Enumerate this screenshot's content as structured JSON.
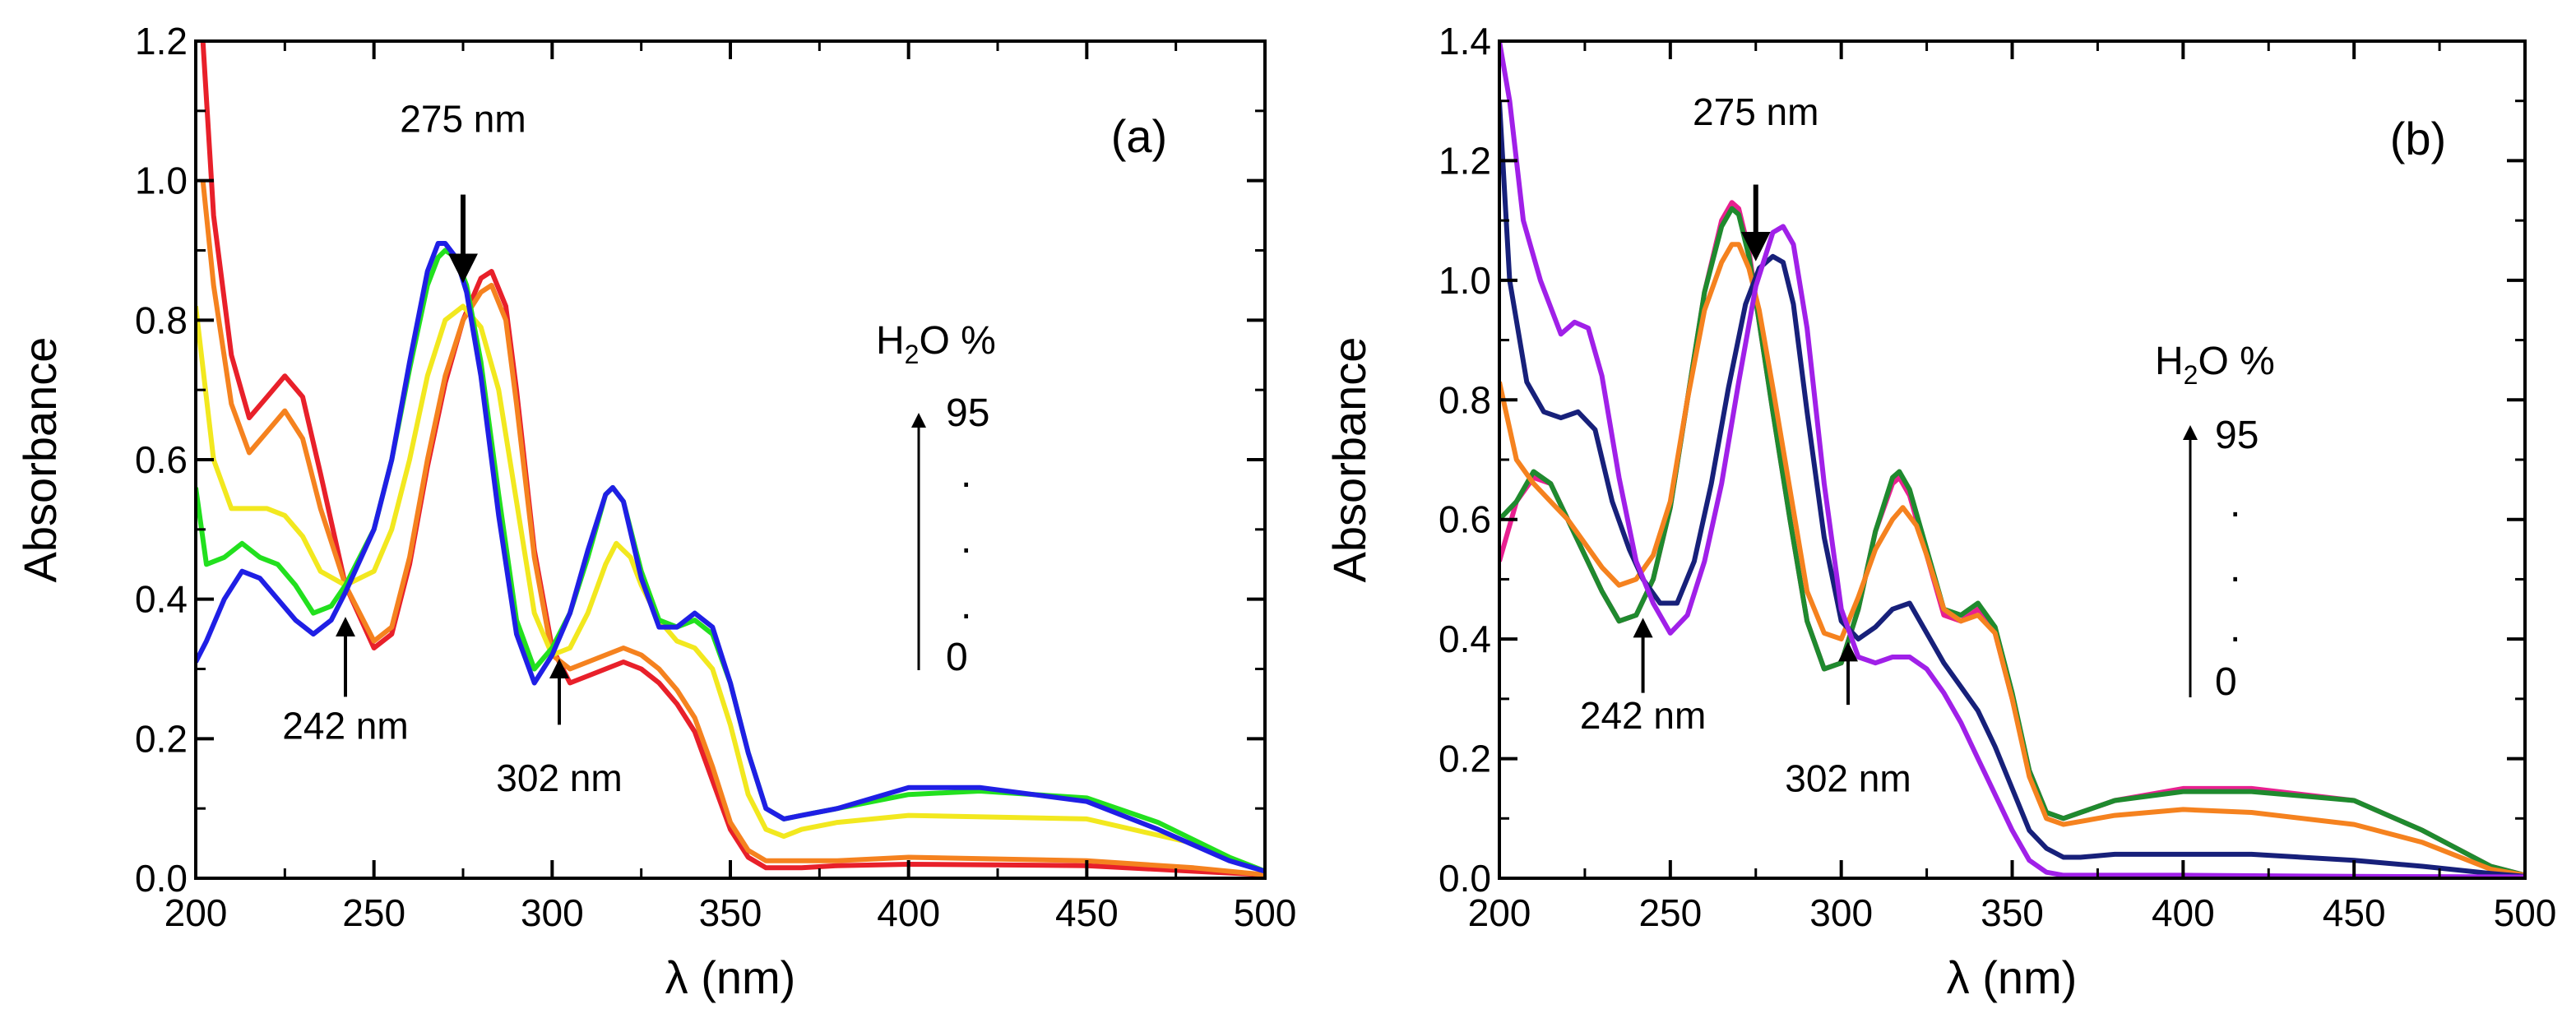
{
  "chart_data": [
    {
      "type": "line",
      "panel_label": "(a)",
      "xlabel": "λ (nm)",
      "ylabel": "Absorbance",
      "xlim": [
        200,
        500
      ],
      "ylim": [
        0,
        1.2
      ],
      "xticks": [
        200,
        250,
        300,
        350,
        400,
        450,
        500
      ],
      "xtick_labels": [
        "200",
        "250",
        "300",
        "350",
        "400",
        "450",
        "500"
      ],
      "yticks": [
        0.0,
        0.2,
        0.4,
        0.6,
        0.8,
        1.0,
        1.2
      ],
      "ytick_labels": [
        "0.0",
        "0.2",
        "0.4",
        "0.6",
        "0.8",
        "1.0",
        "1.2"
      ],
      "grid": false,
      "legend": {
        "title": "H",
        "title_sub": "2",
        "title_tail": "O %",
        "top": "95",
        "dots": ".",
        "bottom": "0"
      },
      "annotations": [
        {
          "text": "275 nm",
          "x": 275,
          "arrow": "down",
          "arrow_y": [
            0.98,
            0.86
          ],
          "text_y": 1.07
        },
        {
          "text": "242 nm",
          "x": 242,
          "arrow": "up",
          "arrow_y": [
            0.26,
            0.37
          ],
          "text_y": 0.2
        },
        {
          "text": "302 nm",
          "x": 302,
          "arrow": "up",
          "arrow_y": [
            0.22,
            0.31
          ],
          "text_y": 0.125
        }
      ],
      "series": [
        {
          "name": "red",
          "color": "#e8202a",
          "x": [
            202,
            205,
            210,
            215,
            220,
            225,
            230,
            235,
            242,
            250,
            255,
            260,
            265,
            270,
            275,
            280,
            283,
            287,
            290,
            295,
            300,
            305,
            310,
            315,
            320,
            325,
            330,
            335,
            340,
            345,
            350,
            355,
            360,
            370,
            380,
            400,
            450,
            480,
            500
          ],
          "y": [
            1.2,
            0.95,
            0.75,
            0.66,
            0.69,
            0.72,
            0.69,
            0.58,
            0.42,
            0.33,
            0.35,
            0.45,
            0.59,
            0.71,
            0.8,
            0.86,
            0.87,
            0.82,
            0.7,
            0.47,
            0.33,
            0.28,
            0.29,
            0.3,
            0.31,
            0.3,
            0.28,
            0.25,
            0.21,
            0.14,
            0.07,
            0.03,
            0.015,
            0.015,
            0.018,
            0.02,
            0.018,
            0.01,
            0.005
          ]
        },
        {
          "name": "orange",
          "color": "#f5821f",
          "x": [
            202,
            205,
            210,
            215,
            220,
            225,
            230,
            235,
            242,
            250,
            255,
            260,
            265,
            270,
            275,
            280,
            283,
            287,
            290,
            295,
            300,
            305,
            310,
            315,
            320,
            325,
            330,
            335,
            340,
            345,
            350,
            355,
            360,
            370,
            380,
            400,
            450,
            480,
            500
          ],
          "y": [
            1.0,
            0.85,
            0.68,
            0.61,
            0.64,
            0.67,
            0.63,
            0.53,
            0.42,
            0.34,
            0.36,
            0.46,
            0.6,
            0.72,
            0.8,
            0.84,
            0.85,
            0.8,
            0.68,
            0.46,
            0.32,
            0.3,
            0.31,
            0.32,
            0.33,
            0.32,
            0.3,
            0.27,
            0.23,
            0.16,
            0.08,
            0.04,
            0.025,
            0.025,
            0.025,
            0.03,
            0.025,
            0.015,
            0.005
          ]
        },
        {
          "name": "yellow",
          "color": "#f2e81f",
          "x": [
            200,
            205,
            210,
            215,
            220,
            225,
            230,
            235,
            242,
            250,
            255,
            260,
            265,
            270,
            275,
            280,
            285,
            290,
            295,
            300,
            305,
            310,
            315,
            318,
            322,
            325,
            330,
            335,
            340,
            345,
            350,
            355,
            360,
            365,
            370,
            380,
            400,
            450,
            480,
            500
          ],
          "y": [
            0.82,
            0.6,
            0.53,
            0.53,
            0.53,
            0.52,
            0.49,
            0.44,
            0.42,
            0.44,
            0.5,
            0.6,
            0.72,
            0.8,
            0.82,
            0.79,
            0.7,
            0.54,
            0.38,
            0.32,
            0.33,
            0.38,
            0.45,
            0.48,
            0.46,
            0.42,
            0.37,
            0.34,
            0.33,
            0.3,
            0.22,
            0.12,
            0.07,
            0.06,
            0.07,
            0.08,
            0.09,
            0.085,
            0.05,
            0.01
          ]
        },
        {
          "name": "green",
          "color": "#22e01e",
          "x": [
            200,
            203,
            208,
            213,
            218,
            223,
            228,
            233,
            238,
            242,
            250,
            255,
            260,
            265,
            268,
            270,
            273,
            276,
            280,
            285,
            290,
            295,
            300,
            305,
            310,
            315,
            317,
            320,
            325,
            330,
            335,
            340,
            345,
            350,
            355,
            360,
            365,
            370,
            380,
            400,
            420,
            450,
            470,
            490,
            500
          ],
          "y": [
            0.56,
            0.45,
            0.46,
            0.48,
            0.46,
            0.45,
            0.42,
            0.38,
            0.39,
            0.42,
            0.5,
            0.6,
            0.73,
            0.85,
            0.89,
            0.9,
            0.89,
            0.85,
            0.74,
            0.55,
            0.37,
            0.3,
            0.33,
            0.38,
            0.46,
            0.55,
            0.56,
            0.54,
            0.44,
            0.37,
            0.36,
            0.37,
            0.35,
            0.28,
            0.18,
            0.1,
            0.085,
            0.09,
            0.1,
            0.12,
            0.125,
            0.115,
            0.08,
            0.03,
            0.01
          ]
        },
        {
          "name": "blue",
          "color": "#1f1fe5",
          "x": [
            200,
            203,
            208,
            213,
            218,
            223,
            228,
            233,
            238,
            242,
            250,
            255,
            260,
            265,
            268,
            270,
            273,
            276,
            280,
            285,
            290,
            295,
            300,
            305,
            310,
            315,
            317,
            320,
            325,
            330,
            335,
            340,
            345,
            350,
            355,
            360,
            365,
            370,
            380,
            400,
            420,
            450,
            470,
            490,
            500
          ],
          "y": [
            0.31,
            0.34,
            0.4,
            0.44,
            0.43,
            0.4,
            0.37,
            0.35,
            0.37,
            0.41,
            0.5,
            0.6,
            0.74,
            0.87,
            0.91,
            0.91,
            0.89,
            0.84,
            0.72,
            0.52,
            0.35,
            0.28,
            0.32,
            0.38,
            0.47,
            0.55,
            0.56,
            0.54,
            0.43,
            0.36,
            0.36,
            0.38,
            0.36,
            0.28,
            0.18,
            0.1,
            0.085,
            0.09,
            0.1,
            0.13,
            0.13,
            0.11,
            0.07,
            0.025,
            0.01
          ]
        }
      ]
    },
    {
      "type": "line",
      "panel_label": "(b)",
      "xlabel": "λ (nm)",
      "ylabel": "Absorbance",
      "xlim": [
        200,
        500
      ],
      "ylim": [
        0,
        1.4
      ],
      "xticks": [
        200,
        250,
        300,
        350,
        400,
        450,
        500
      ],
      "xtick_labels": [
        "200",
        "250",
        "300",
        "350",
        "400",
        "450",
        "500"
      ],
      "yticks": [
        0.0,
        0.2,
        0.4,
        0.6,
        0.8,
        1.0,
        1.2,
        1.4
      ],
      "ytick_labels": [
        "0.0",
        "0.2",
        "0.4",
        "0.6",
        "0.8",
        "1.0",
        "1.2",
        "1.4"
      ],
      "grid": false,
      "legend": {
        "title": "H",
        "title_sub": "2",
        "title_tail": "O %",
        "top": "95",
        "dots": ".",
        "bottom": "0"
      },
      "annotations": [
        {
          "text": "275 nm",
          "x": 275,
          "arrow": "down",
          "arrow_y": [
            1.16,
            1.04
          ],
          "text_y": 1.26
        },
        {
          "text": "242 nm",
          "x": 242,
          "arrow": "up",
          "arrow_y": [
            0.31,
            0.43
          ],
          "text_y": 0.25
        },
        {
          "text": "302 nm",
          "x": 302,
          "arrow": "up",
          "arrow_y": [
            0.29,
            0.39
          ],
          "text_y": 0.145
        }
      ],
      "series": [
        {
          "name": "magenta",
          "color": "#e82090",
          "x": [
            200,
            205,
            210,
            215,
            220,
            225,
            230,
            235,
            240,
            245,
            250,
            255,
            260,
            265,
            268,
            270,
            273,
            276,
            280,
            285,
            290,
            295,
            300,
            305,
            310,
            315,
            317,
            320,
            325,
            330,
            335,
            340,
            345,
            350,
            355,
            360,
            365,
            370,
            380,
            400,
            420,
            450,
            470,
            490,
            500
          ],
          "y": [
            0.53,
            0.63,
            0.67,
            0.66,
            0.6,
            0.54,
            0.48,
            0.43,
            0.44,
            0.5,
            0.62,
            0.8,
            0.98,
            1.1,
            1.13,
            1.12,
            1.05,
            0.93,
            0.78,
            0.6,
            0.43,
            0.35,
            0.36,
            0.45,
            0.58,
            0.66,
            0.67,
            0.64,
            0.54,
            0.44,
            0.43,
            0.45,
            0.41,
            0.3,
            0.18,
            0.11,
            0.1,
            0.11,
            0.13,
            0.15,
            0.15,
            0.13,
            0.08,
            0.02,
            0.005
          ]
        },
        {
          "name": "green",
          "color": "#1f8a2e",
          "x": [
            200,
            205,
            210,
            215,
            220,
            225,
            230,
            235,
            240,
            245,
            250,
            255,
            260,
            265,
            268,
            270,
            273,
            276,
            280,
            285,
            290,
            295,
            300,
            305,
            310,
            315,
            317,
            320,
            325,
            330,
            335,
            340,
            345,
            350,
            355,
            360,
            365,
            370,
            380,
            400,
            420,
            450,
            470,
            490,
            500
          ],
          "y": [
            0.6,
            0.63,
            0.68,
            0.66,
            0.6,
            0.54,
            0.48,
            0.43,
            0.44,
            0.5,
            0.62,
            0.8,
            0.98,
            1.09,
            1.12,
            1.11,
            1.04,
            0.93,
            0.78,
            0.6,
            0.43,
            0.35,
            0.36,
            0.45,
            0.58,
            0.67,
            0.68,
            0.65,
            0.55,
            0.45,
            0.44,
            0.46,
            0.42,
            0.31,
            0.18,
            0.11,
            0.1,
            0.11,
            0.13,
            0.145,
            0.145,
            0.13,
            0.08,
            0.02,
            0.005
          ]
        },
        {
          "name": "orange",
          "color": "#f5821f",
          "x": [
            200,
            205,
            210,
            215,
            220,
            225,
            230,
            235,
            240,
            245,
            250,
            255,
            260,
            265,
            268,
            270,
            273,
            276,
            280,
            285,
            290,
            295,
            300,
            305,
            310,
            315,
            318,
            322,
            325,
            330,
            335,
            340,
            345,
            350,
            355,
            360,
            365,
            370,
            380,
            400,
            420,
            450,
            470,
            490,
            500
          ],
          "y": [
            0.83,
            0.7,
            0.66,
            0.63,
            0.6,
            0.56,
            0.52,
            0.49,
            0.5,
            0.54,
            0.63,
            0.8,
            0.95,
            1.03,
            1.06,
            1.06,
            1.02,
            0.95,
            0.82,
            0.65,
            0.48,
            0.41,
            0.4,
            0.47,
            0.55,
            0.6,
            0.62,
            0.59,
            0.54,
            0.45,
            0.43,
            0.44,
            0.41,
            0.3,
            0.17,
            0.1,
            0.09,
            0.095,
            0.105,
            0.115,
            0.11,
            0.09,
            0.06,
            0.015,
            0.005
          ]
        },
        {
          "name": "navy",
          "color": "#17207a",
          "x": [
            200,
            203,
            208,
            213,
            218,
            223,
            228,
            233,
            238,
            242,
            247,
            252,
            257,
            262,
            267,
            272,
            276,
            280,
            283,
            286,
            290,
            295,
            300,
            305,
            310,
            315,
            320,
            325,
            330,
            335,
            340,
            345,
            350,
            355,
            360,
            365,
            370,
            380,
            400,
            420,
            450,
            470,
            490,
            500
          ],
          "y": [
            1.3,
            1.0,
            0.83,
            0.78,
            0.77,
            0.78,
            0.75,
            0.63,
            0.55,
            0.5,
            0.46,
            0.46,
            0.53,
            0.66,
            0.82,
            0.96,
            1.02,
            1.04,
            1.03,
            0.96,
            0.78,
            0.57,
            0.43,
            0.4,
            0.42,
            0.45,
            0.46,
            0.41,
            0.36,
            0.32,
            0.28,
            0.22,
            0.15,
            0.08,
            0.05,
            0.035,
            0.035,
            0.04,
            0.04,
            0.04,
            0.03,
            0.02,
            0.008,
            0.003
          ]
        },
        {
          "name": "purple",
          "color": "#a020e8",
          "x": [
            200,
            203,
            207,
            212,
            218,
            222,
            226,
            230,
            235,
            240,
            245,
            250,
            255,
            260,
            265,
            270,
            275,
            280,
            283,
            286,
            290,
            295,
            300,
            305,
            310,
            315,
            320,
            325,
            330,
            335,
            340,
            345,
            350,
            355,
            360,
            365,
            370,
            380,
            400,
            450,
            500
          ],
          "y": [
            1.4,
            1.3,
            1.1,
            1.0,
            0.91,
            0.93,
            0.92,
            0.84,
            0.67,
            0.53,
            0.46,
            0.41,
            0.44,
            0.53,
            0.66,
            0.83,
            0.99,
            1.08,
            1.09,
            1.06,
            0.92,
            0.66,
            0.45,
            0.37,
            0.36,
            0.37,
            0.37,
            0.35,
            0.31,
            0.26,
            0.2,
            0.14,
            0.08,
            0.03,
            0.01,
            0.005,
            0.005,
            0.005,
            0.005,
            0.003,
            0.002
          ]
        }
      ]
    }
  ]
}
